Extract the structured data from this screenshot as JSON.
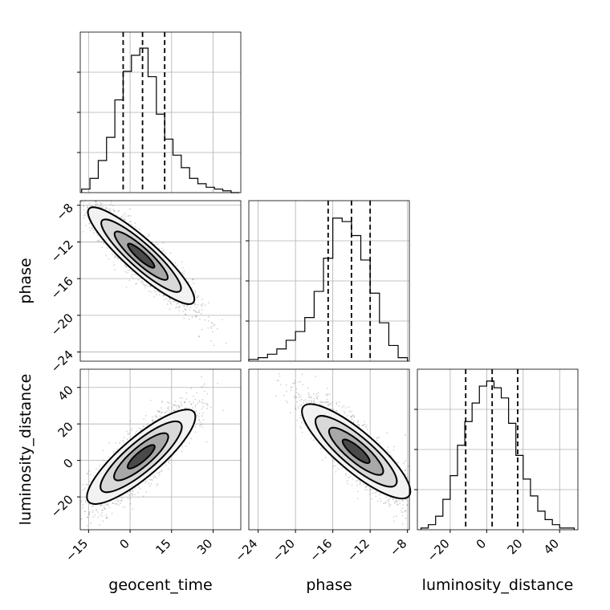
{
  "chart_data": [
    {
      "type": "histogram",
      "panel": "geocent_time (marginal)",
      "xlim": [
        -18,
        40
      ],
      "bins_x": [
        -16,
        -13,
        -10,
        -7,
        -4,
        -1,
        2,
        5,
        8,
        11,
        14,
        17,
        20,
        23,
        26,
        29,
        32,
        35,
        38
      ],
      "counts": [
        0.02,
        0.08,
        0.18,
        0.31,
        0.52,
        0.68,
        0.77,
        0.81,
        0.65,
        0.44,
        0.3,
        0.21,
        0.14,
        0.08,
        0.05,
        0.03,
        0.02,
        0.01,
        0.0
      ],
      "quantile_lines": [
        -2.5,
        4.5,
        12.5
      ],
      "x_ticks": [
        -15,
        0,
        15,
        30
      ],
      "ylim": [
        0,
        0.9
      ]
    },
    {
      "type": "scatter_contour",
      "panel": "geocent_time vs phase",
      "xlim": [
        -18,
        40
      ],
      "ylim": [
        -25,
        -7.5
      ],
      "correlation": -0.9,
      "center": [
        4,
        -13.5
      ],
      "contour_sigma_scale": [
        0.5,
        1.0,
        1.5,
        2.0
      ],
      "y_ticks": [
        -8,
        -12,
        -16,
        -20,
        -24
      ],
      "ylabel": "phase"
    },
    {
      "type": "scatter_contour",
      "panel": "geocent_time vs luminosity_distance",
      "xlim": [
        -18,
        40
      ],
      "ylim": [
        -38,
        50
      ],
      "correlation": 0.85,
      "center": [
        4,
        2
      ],
      "contour_sigma_scale": [
        0.5,
        1.0,
        1.5,
        2.0
      ],
      "x_ticks": [
        -15,
        0,
        15,
        30
      ],
      "y_ticks": [
        40,
        20,
        0,
        -20
      ],
      "xlabel": "geocent_time",
      "ylabel": "luminosity_distance"
    },
    {
      "type": "histogram",
      "panel": "phase (marginal)",
      "xlim": [
        -25,
        -7.8
      ],
      "bins_x": [
        -24.5,
        -23.5,
        -22.5,
        -21.5,
        -20.5,
        -19.5,
        -18.5,
        -17.5,
        -16.5,
        -15.5,
        -14.5,
        -13.5,
        -12.5,
        -11.5,
        -10.5,
        -9.5,
        -8.5
      ],
      "counts": [
        0.01,
        0.02,
        0.04,
        0.07,
        0.12,
        0.17,
        0.25,
        0.4,
        0.59,
        0.82,
        0.8,
        0.72,
        0.58,
        0.39,
        0.22,
        0.09,
        0.02
      ],
      "quantile_lines": [
        -16.5,
        -14,
        -12
      ],
      "x_ticks": [
        -24,
        -20,
        -16,
        -12,
        -8
      ],
      "ylim": [
        0,
        0.92
      ]
    },
    {
      "type": "scatter_contour",
      "panel": "phase vs luminosity_distance",
      "xlim": [
        -25,
        -7.8
      ],
      "ylim": [
        -38,
        50
      ],
      "correlation": -0.85,
      "center": [
        -13.5,
        5
      ],
      "contour_sigma_scale": [
        0.5,
        1.0,
        1.5,
        2.0
      ],
      "x_ticks": [
        -24,
        -20,
        -16,
        -12,
        -8
      ],
      "xlabel": "phase"
    },
    {
      "type": "histogram",
      "panel": "luminosity_distance (marginal)",
      "xlim": [
        -38,
        50
      ],
      "bins_x": [
        -34,
        -30,
        -26,
        -22,
        -18,
        -14,
        -10,
        -6,
        -2,
        2,
        6,
        10,
        14,
        18,
        22,
        26,
        30,
        34,
        38,
        42,
        46
      ],
      "counts": [
        0.01,
        0.03,
        0.08,
        0.18,
        0.32,
        0.5,
        0.64,
        0.75,
        0.85,
        0.88,
        0.84,
        0.78,
        0.63,
        0.44,
        0.3,
        0.2,
        0.11,
        0.06,
        0.03,
        0.01,
        0.01
      ],
      "quantile_lines": [
        -11.5,
        3,
        17
      ],
      "x_ticks": [
        -20,
        0,
        20,
        40
      ],
      "xlabel": "luminosity_distance",
      "ylim": [
        0,
        0.95
      ]
    }
  ],
  "labels": {
    "geocent_time": "geocent_time",
    "phase": "phase",
    "luminosity_distance": "luminosity_distance"
  }
}
